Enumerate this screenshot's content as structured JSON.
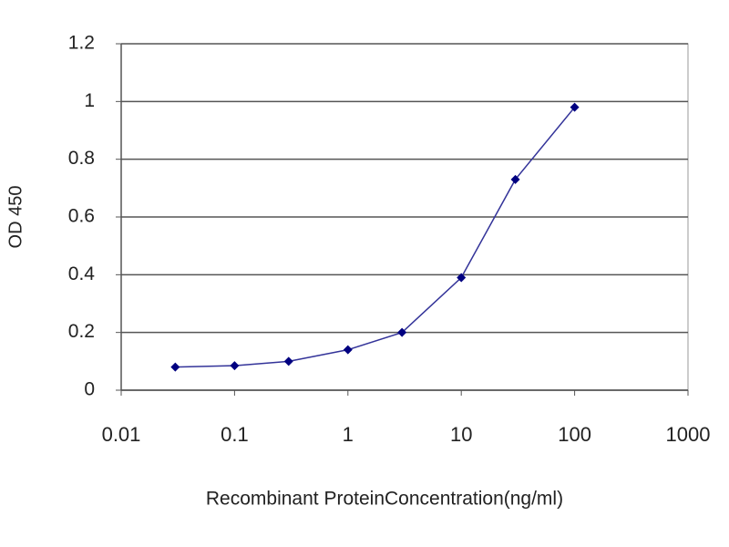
{
  "chart_data": {
    "type": "line",
    "x_label": "Recombinant ProteinConcentration(ng/ml)",
    "y_label": "OD 450",
    "xscale": "log",
    "xlim": [
      0.01,
      1000
    ],
    "xticks": [
      0.01,
      0.1,
      1,
      10,
      100,
      1000
    ],
    "ylim": [
      0,
      1.2
    ],
    "yticks": [
      0,
      0.2,
      0.4,
      0.6,
      0.8,
      1,
      1.2
    ],
    "grid": true,
    "series": [
      {
        "color": "#333399",
        "x": [
          0.03,
          0.1,
          0.3,
          1,
          3,
          10,
          30,
          100
        ],
        "values": [
          0.08,
          0.085,
          0.1,
          0.14,
          0.2,
          0.39,
          0.73,
          0.98
        ]
      }
    ]
  }
}
